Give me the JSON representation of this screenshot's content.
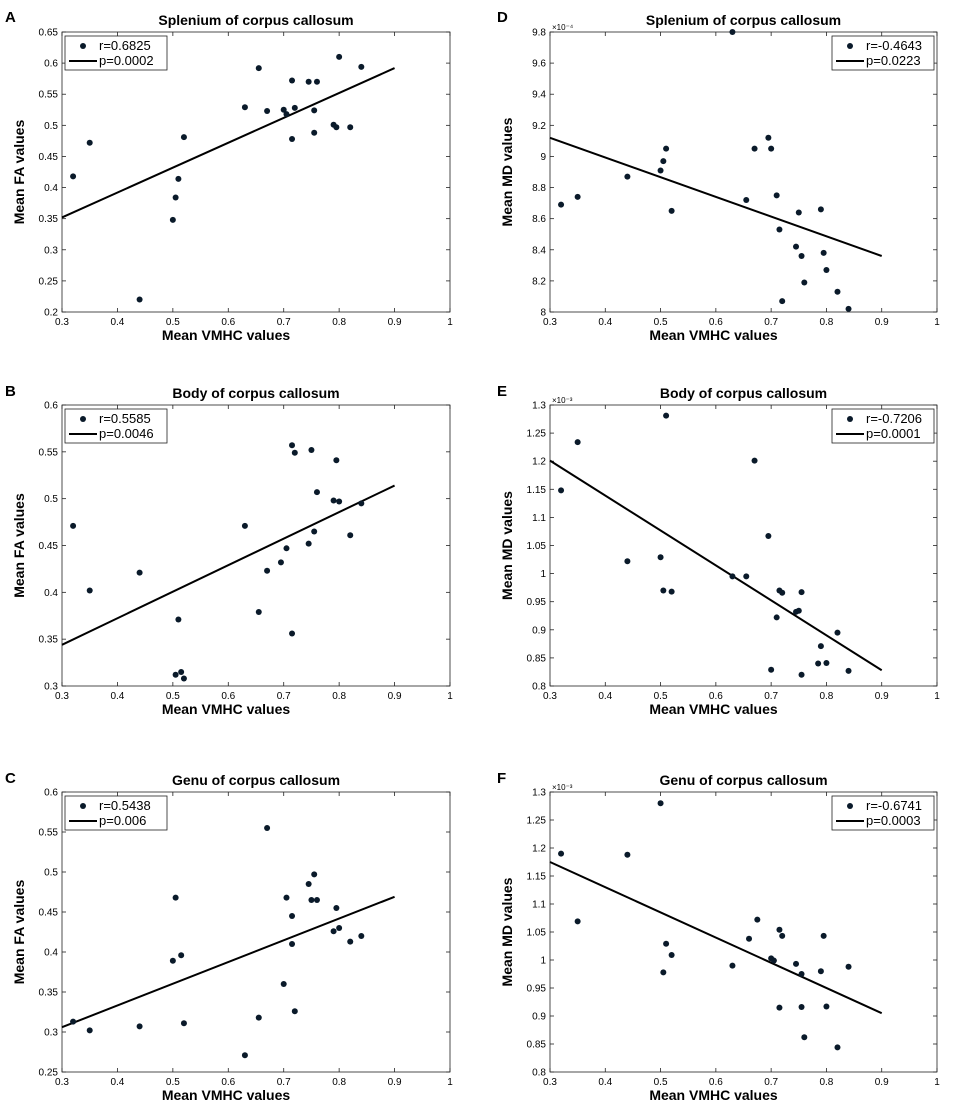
{
  "chart_data": [
    {
      "panel": "A",
      "type": "scatter",
      "title": "Splenium of corpus callosum",
      "xlabel": "Mean VMHC values",
      "ylabel": "Mean FA values",
      "xlim": [
        0.3,
        1
      ],
      "ylim": [
        0.2,
        0.65
      ],
      "xticks": [
        "0.3",
        "0.4",
        "0.5",
        "0.6",
        "0.7",
        "0.8",
        "0.9",
        "1"
      ],
      "yticks": [
        "0.2",
        "0.25",
        "0.3",
        "0.35",
        "0.4",
        "0.45",
        "0.5",
        "0.55",
        "0.6",
        "0.65"
      ],
      "exponent": "",
      "legend": {
        "r": "r=0.6825",
        "p": "p=0.0002",
        "position": "top-left"
      },
      "fit_line": {
        "x": [
          0.3,
          0.9
        ],
        "y": [
          0.352,
          0.592
        ]
      },
      "points": [
        [
          0.32,
          0.418
        ],
        [
          0.35,
          0.472
        ],
        [
          0.44,
          0.22
        ],
        [
          0.5,
          0.348
        ],
        [
          0.505,
          0.384
        ],
        [
          0.51,
          0.414
        ],
        [
          0.52,
          0.481
        ],
        [
          0.63,
          0.529
        ],
        [
          0.655,
          0.592
        ],
        [
          0.67,
          0.523
        ],
        [
          0.7,
          0.525
        ],
        [
          0.705,
          0.518
        ],
        [
          0.715,
          0.572
        ],
        [
          0.715,
          0.478
        ],
        [
          0.72,
          0.528
        ],
        [
          0.745,
          0.57
        ],
        [
          0.755,
          0.488
        ],
        [
          0.755,
          0.524
        ],
        [
          0.76,
          0.57
        ],
        [
          0.79,
          0.501
        ],
        [
          0.795,
          0.497
        ],
        [
          0.8,
          0.61
        ],
        [
          0.82,
          0.497
        ],
        [
          0.84,
          0.594
        ]
      ]
    },
    {
      "panel": "B",
      "type": "scatter",
      "title": "Body of corpus callosum",
      "xlabel": "Mean VMHC values",
      "ylabel": "Mean FA values",
      "xlim": [
        0.3,
        1
      ],
      "ylim": [
        0.3,
        0.6
      ],
      "xticks": [
        "0.3",
        "0.4",
        "0.5",
        "0.6",
        "0.7",
        "0.8",
        "0.9",
        "1"
      ],
      "yticks": [
        "0.3",
        "0.35",
        "0.4",
        "0.45",
        "0.5",
        "0.55",
        "0.6"
      ],
      "exponent": "",
      "legend": {
        "r": "r=0.5585",
        "p": "p=0.0046",
        "position": "top-left"
      },
      "fit_line": {
        "x": [
          0.3,
          0.9
        ],
        "y": [
          0.344,
          0.514
        ]
      },
      "points": [
        [
          0.32,
          0.471
        ],
        [
          0.35,
          0.402
        ],
        [
          0.44,
          0.421
        ],
        [
          0.505,
          0.312
        ],
        [
          0.51,
          0.371
        ],
        [
          0.515,
          0.315
        ],
        [
          0.52,
          0.308
        ],
        [
          0.63,
          0.471
        ],
        [
          0.655,
          0.379
        ],
        [
          0.67,
          0.423
        ],
        [
          0.695,
          0.432
        ],
        [
          0.705,
          0.447
        ],
        [
          0.715,
          0.356
        ],
        [
          0.715,
          0.557
        ],
        [
          0.72,
          0.549
        ],
        [
          0.745,
          0.452
        ],
        [
          0.75,
          0.552
        ],
        [
          0.755,
          0.465
        ],
        [
          0.76,
          0.507
        ],
        [
          0.79,
          0.498
        ],
        [
          0.795,
          0.541
        ],
        [
          0.8,
          0.497
        ],
        [
          0.82,
          0.461
        ],
        [
          0.84,
          0.495
        ]
      ]
    },
    {
      "panel": "C",
      "type": "scatter",
      "title": "Genu of corpus callosum",
      "xlabel": "Mean VMHC values",
      "ylabel": "Mean FA values",
      "xlim": [
        0.3,
        1
      ],
      "ylim": [
        0.25,
        0.6
      ],
      "xticks": [
        "0.3",
        "0.4",
        "0.5",
        "0.6",
        "0.7",
        "0.8",
        "0.9",
        "1"
      ],
      "yticks": [
        "0.25",
        "0.3",
        "0.35",
        "0.4",
        "0.45",
        "0.5",
        "0.55",
        "0.6"
      ],
      "exponent": "",
      "legend": {
        "r": "r=0.5438",
        "p": "p=0.006",
        "position": "top-left"
      },
      "fit_line": {
        "x": [
          0.3,
          0.9
        ],
        "y": [
          0.306,
          0.469
        ]
      },
      "points": [
        [
          0.32,
          0.313
        ],
        [
          0.35,
          0.302
        ],
        [
          0.44,
          0.307
        ],
        [
          0.5,
          0.389
        ],
        [
          0.505,
          0.468
        ],
        [
          0.515,
          0.396
        ],
        [
          0.52,
          0.311
        ],
        [
          0.63,
          0.271
        ],
        [
          0.655,
          0.318
        ],
        [
          0.67,
          0.555
        ],
        [
          0.7,
          0.36
        ],
        [
          0.705,
          0.468
        ],
        [
          0.715,
          0.41
        ],
        [
          0.715,
          0.445
        ],
        [
          0.72,
          0.326
        ],
        [
          0.745,
          0.485
        ],
        [
          0.75,
          0.465
        ],
        [
          0.755,
          0.497
        ],
        [
          0.76,
          0.465
        ],
        [
          0.79,
          0.426
        ],
        [
          0.795,
          0.455
        ],
        [
          0.8,
          0.43
        ],
        [
          0.82,
          0.413
        ],
        [
          0.84,
          0.42
        ]
      ]
    },
    {
      "panel": "D",
      "type": "scatter",
      "title": "Splenium of corpus callosum",
      "xlabel": "Mean VMHC values",
      "ylabel": "Mean MD values",
      "xlim": [
        0.3,
        1
      ],
      "ylim": [
        8,
        9.8
      ],
      "xticks": [
        "0.3",
        "0.4",
        "0.5",
        "0.6",
        "0.7",
        "0.8",
        "0.9",
        "1"
      ],
      "yticks": [
        "8",
        "8.2",
        "8.4",
        "8.6",
        "8.8",
        "9",
        "9.2",
        "9.4",
        "9.6",
        "9.8"
      ],
      "exponent": "×10⁻⁴",
      "legend": {
        "r": "r=-0.4643",
        "p": "p=0.0223",
        "position": "top-right"
      },
      "fit_line": {
        "x": [
          0.3,
          0.9
        ],
        "y": [
          9.12,
          8.36
        ]
      },
      "points": [
        [
          0.32,
          8.69
        ],
        [
          0.35,
          8.74
        ],
        [
          0.44,
          8.87
        ],
        [
          0.5,
          8.91
        ],
        [
          0.505,
          8.97
        ],
        [
          0.51,
          9.05
        ],
        [
          0.52,
          8.65
        ],
        [
          0.63,
          9.8
        ],
        [
          0.655,
          8.72
        ],
        [
          0.67,
          9.05
        ],
        [
          0.695,
          9.12
        ],
        [
          0.7,
          9.05
        ],
        [
          0.71,
          8.75
        ],
        [
          0.715,
          8.53
        ],
        [
          0.72,
          8.07
        ],
        [
          0.745,
          8.42
        ],
        [
          0.75,
          8.64
        ],
        [
          0.755,
          8.36
        ],
        [
          0.76,
          8.19
        ],
        [
          0.79,
          8.66
        ],
        [
          0.795,
          8.38
        ],
        [
          0.8,
          8.27
        ],
        [
          0.82,
          8.13
        ],
        [
          0.84,
          8.02
        ]
      ]
    },
    {
      "panel": "E",
      "type": "scatter",
      "title": "Body of corpus callosum",
      "xlabel": "Mean VMHC values",
      "ylabel": "Mean MD values",
      "xlim": [
        0.3,
        1
      ],
      "ylim": [
        0.8,
        1.3
      ],
      "xticks": [
        "0.3",
        "0.4",
        "0.5",
        "0.6",
        "0.7",
        "0.8",
        "0.9",
        "1"
      ],
      "yticks": [
        "0.8",
        "0.85",
        "0.9",
        "0.95",
        "1",
        "1.05",
        "1.1",
        "1.15",
        "1.2",
        "1.25",
        "1.3"
      ],
      "exponent": "×10⁻³",
      "legend": {
        "r": "r=-0.7206",
        "p": "p=0.0001",
        "position": "top-right"
      },
      "fit_line": {
        "x": [
          0.3,
          0.9
        ],
        "y": [
          1.201,
          0.828
        ]
      },
      "points": [
        [
          0.32,
          1.148
        ],
        [
          0.35,
          1.234
        ],
        [
          0.44,
          1.022
        ],
        [
          0.5,
          1.029
        ],
        [
          0.505,
          0.97
        ],
        [
          0.51,
          1.281
        ],
        [
          0.52,
          0.968
        ],
        [
          0.63,
          0.995
        ],
        [
          0.655,
          0.995
        ],
        [
          0.67,
          1.201
        ],
        [
          0.695,
          1.067
        ],
        [
          0.7,
          0.829
        ],
        [
          0.71,
          0.922
        ],
        [
          0.715,
          0.97
        ],
        [
          0.72,
          0.966
        ],
        [
          0.745,
          0.932
        ],
        [
          0.75,
          0.934
        ],
        [
          0.755,
          0.82
        ],
        [
          0.755,
          0.967
        ],
        [
          0.785,
          0.84
        ],
        [
          0.79,
          0.871
        ],
        [
          0.8,
          0.841
        ],
        [
          0.82,
          0.895
        ],
        [
          0.84,
          0.827
        ]
      ]
    },
    {
      "panel": "F",
      "type": "scatter",
      "title": "Genu of corpus callosum",
      "xlabel": "Mean VMHC values",
      "ylabel": "Mean MD values",
      "xlim": [
        0.3,
        1
      ],
      "ylim": [
        0.8,
        1.3
      ],
      "xticks": [
        "0.3",
        "0.4",
        "0.5",
        "0.6",
        "0.7",
        "0.8",
        "0.9",
        "1"
      ],
      "yticks": [
        "0.8",
        "0.85",
        "0.9",
        "0.95",
        "1",
        "1.05",
        "1.1",
        "1.15",
        "1.2",
        "1.25",
        "1.3"
      ],
      "exponent": "×10⁻³",
      "legend": {
        "r": "r=-0.6741",
        "p": "p=0.0003",
        "position": "top-right"
      },
      "fit_line": {
        "x": [
          0.3,
          0.9
        ],
        "y": [
          1.175,
          0.905
        ]
      },
      "points": [
        [
          0.32,
          1.19
        ],
        [
          0.35,
          1.069
        ],
        [
          0.44,
          1.188
        ],
        [
          0.5,
          1.28
        ],
        [
          0.505,
          0.978
        ],
        [
          0.51,
          1.029
        ],
        [
          0.52,
          1.009
        ],
        [
          0.63,
          0.99
        ],
        [
          0.66,
          1.038
        ],
        [
          0.675,
          1.072
        ],
        [
          0.7,
          1.003
        ],
        [
          0.705,
          0.999
        ],
        [
          0.715,
          0.915
        ],
        [
          0.715,
          1.054
        ],
        [
          0.72,
          1.043
        ],
        [
          0.745,
          0.993
        ],
        [
          0.755,
          0.916
        ],
        [
          0.755,
          0.975
        ],
        [
          0.76,
          0.862
        ],
        [
          0.79,
          0.98
        ],
        [
          0.795,
          1.043
        ],
        [
          0.8,
          0.917
        ],
        [
          0.82,
          0.844
        ],
        [
          0.84,
          0.988
        ]
      ]
    }
  ]
}
